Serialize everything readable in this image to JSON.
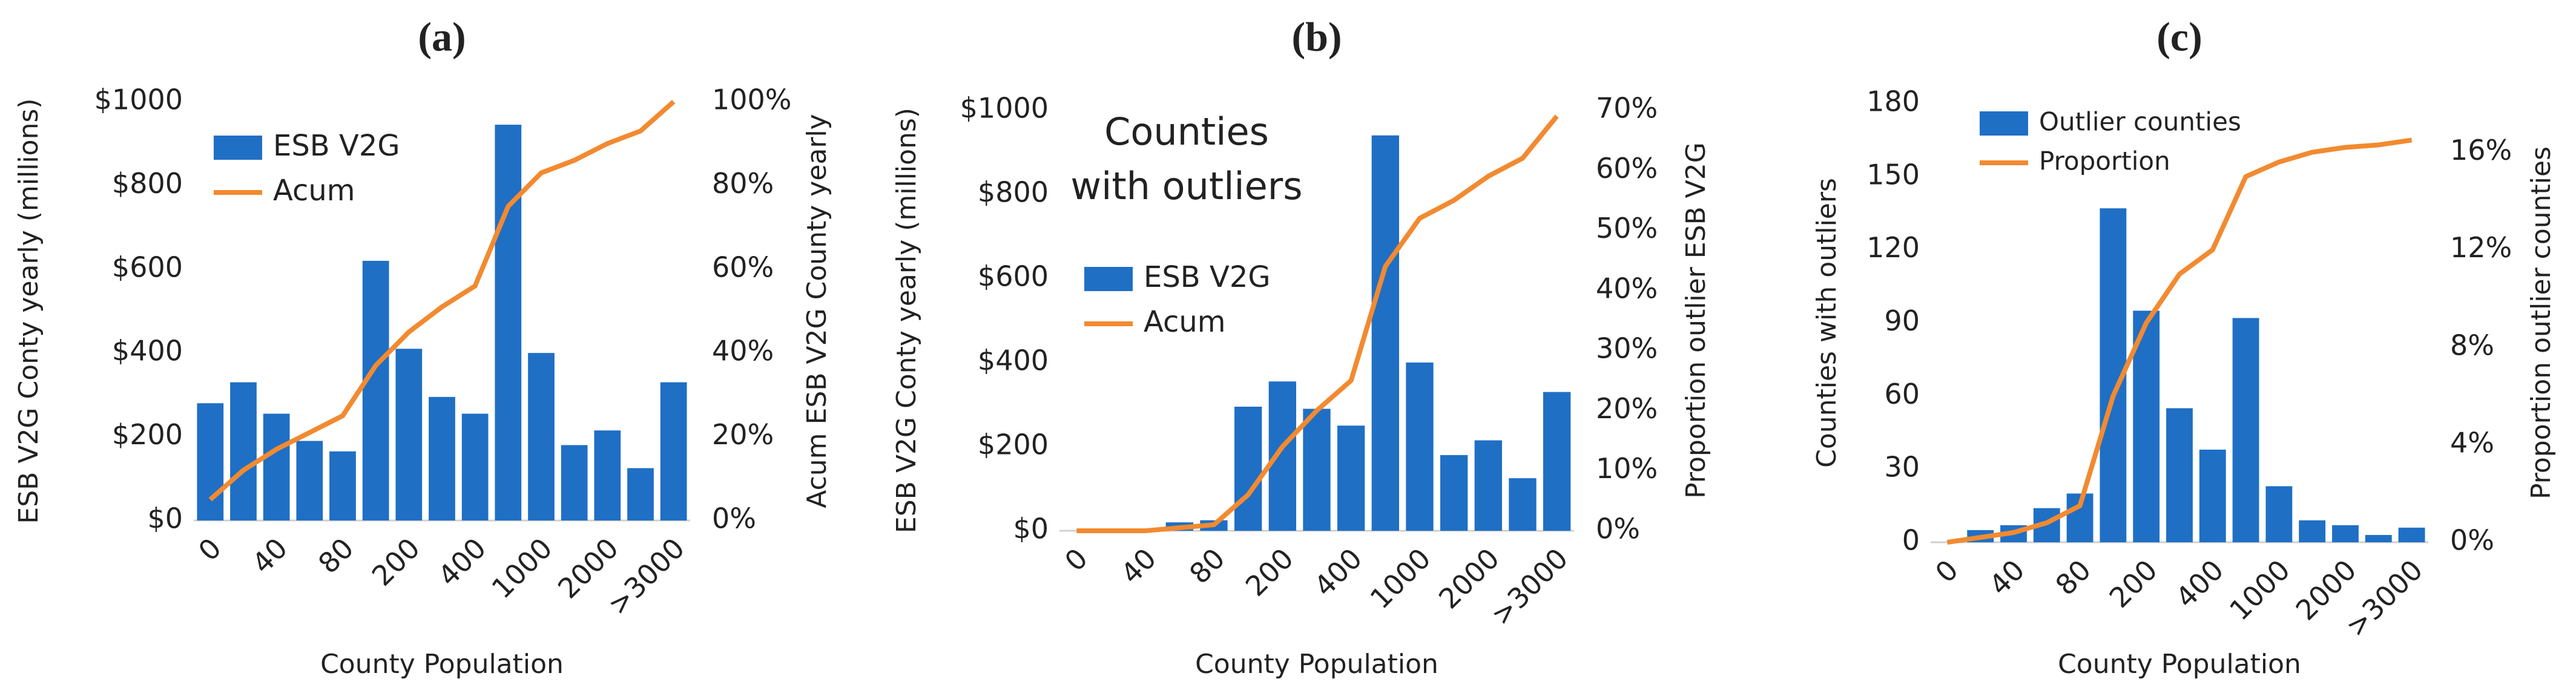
{
  "chart_data": [
    {
      "type": "bar_line",
      "title": "(a)",
      "categories": [
        "0",
        null,
        "40",
        null,
        "80",
        null,
        "200",
        null,
        "400",
        null,
        "1000",
        null,
        "2000",
        null,
        ">3000"
      ],
      "xlabel": "County Population",
      "ylabel": "ESB V2G Conty yearly (millions)",
      "y2label": "Acum ESB V2G County  yearly",
      "series": [
        {
          "name": "ESB V2G",
          "color": "#1f6fc5",
          "kind": "bar",
          "values": [
            280,
            330,
            255,
            190,
            165,
            620,
            410,
            295,
            255,
            945,
            400,
            180,
            215,
            125,
            330
          ]
        },
        {
          "name": "Acum",
          "color": "#f28a30",
          "kind": "line",
          "axis": "y2",
          "values": [
            5,
            12,
            17,
            21,
            25,
            37,
            45,
            51,
            56,
            75,
            83,
            86,
            90,
            93,
            100
          ]
        }
      ],
      "ylim": [
        0,
        1000
      ],
      "yticks": [
        {
          "value": 0,
          "label": "$0"
        },
        {
          "value": 200,
          "label": "$200"
        },
        {
          "value": 400,
          "label": "$400"
        },
        {
          "value": 600,
          "label": "$600"
        },
        {
          "value": 800,
          "label": "$800"
        },
        {
          "value": 1000,
          "label": "$1000"
        }
      ],
      "y2lim": [
        0,
        100
      ],
      "y2ticks": [
        {
          "value": 0,
          "label": "0%"
        },
        {
          "value": 20,
          "label": "20%"
        },
        {
          "value": 40,
          "label": "40%"
        },
        {
          "value": 60,
          "label": "60%"
        },
        {
          "value": 80,
          "label": "80%"
        },
        {
          "value": 100,
          "label": "100%"
        }
      ],
      "legend": "upper left"
    },
    {
      "type": "bar_line",
      "title": "(b)",
      "categories": [
        "0",
        null,
        "40",
        null,
        "80",
        null,
        "200",
        null,
        "400",
        null,
        "1000",
        null,
        "2000",
        null,
        ">3000"
      ],
      "xlabel": "County Population",
      "ylabel": "ESB V2G Conty yearly (millions)",
      "y2label": "Proportion outlier ESB V2G",
      "annotation": [
        "Counties",
        "with outliers"
      ],
      "series": [
        {
          "name": "ESB V2G",
          "color": "#1f6fc5",
          "kind": "bar",
          "values": [
            0,
            0,
            0,
            20,
            25,
            295,
            355,
            290,
            250,
            940,
            400,
            180,
            215,
            125,
            330
          ]
        },
        {
          "name": "Acum",
          "color": "#f28a30",
          "kind": "line",
          "axis": "y2",
          "values": [
            0,
            0,
            0,
            0.5,
            1,
            6,
            14,
            20,
            25,
            44,
            52,
            55,
            59,
            62,
            69
          ]
        }
      ],
      "ylim": [
        0,
        1000
      ],
      "yticks": [
        {
          "value": 0,
          "label": "$0"
        },
        {
          "value": 200,
          "label": "$200"
        },
        {
          "value": 400,
          "label": "$400"
        },
        {
          "value": 600,
          "label": "$600"
        },
        {
          "value": 800,
          "label": "$800"
        },
        {
          "value": 1000,
          "label": "$1000"
        }
      ],
      "y2lim": [
        0,
        70
      ],
      "y2ticks": [
        {
          "value": 0,
          "label": "0%"
        },
        {
          "value": 10,
          "label": "10%"
        },
        {
          "value": 20,
          "label": "20%"
        },
        {
          "value": 30,
          "label": "30%"
        },
        {
          "value": 40,
          "label": "40%"
        },
        {
          "value": 50,
          "label": "50%"
        },
        {
          "value": 60,
          "label": "60%"
        },
        {
          "value": 70,
          "label": "70%"
        }
      ],
      "legend": "center left"
    },
    {
      "type": "bar_line",
      "title": "(c)",
      "categories": [
        "0",
        null,
        "40",
        null,
        "80",
        null,
        "200",
        null,
        "400",
        null,
        "1000",
        null,
        "2000",
        null,
        ">3000"
      ],
      "xlabel": "County Population",
      "ylabel": "Counties with outliers",
      "y2label": "Proportion outlier counties",
      "series": [
        {
          "name": "Outlier counties",
          "color": "#1f6fc5",
          "kind": "bar",
          "values": [
            0,
            5,
            7,
            14,
            20,
            137,
            95,
            55,
            38,
            92,
            23,
            9,
            7,
            3,
            6
          ]
        },
        {
          "name": "Proportion",
          "color": "#f28a30",
          "kind": "line",
          "axis": "y2",
          "values": [
            0,
            0.2,
            0.4,
            0.8,
            1.5,
            6,
            9,
            11,
            12,
            15,
            15.6,
            16,
            16.2,
            16.3,
            16.5
          ]
        }
      ],
      "ylim": [
        0,
        180
      ],
      "yticks": [
        0,
        30,
        60,
        90,
        120,
        150,
        180
      ],
      "y2lim": [
        0,
        18
      ],
      "y2ticks": [
        {
          "value": 0,
          "label": "0%"
        },
        {
          "value": 4,
          "label": "4%"
        },
        {
          "value": 8,
          "label": "8%"
        },
        {
          "value": 12,
          "label": "12%"
        },
        {
          "value": 16,
          "label": "16%"
        }
      ],
      "legend": "upper left"
    }
  ]
}
